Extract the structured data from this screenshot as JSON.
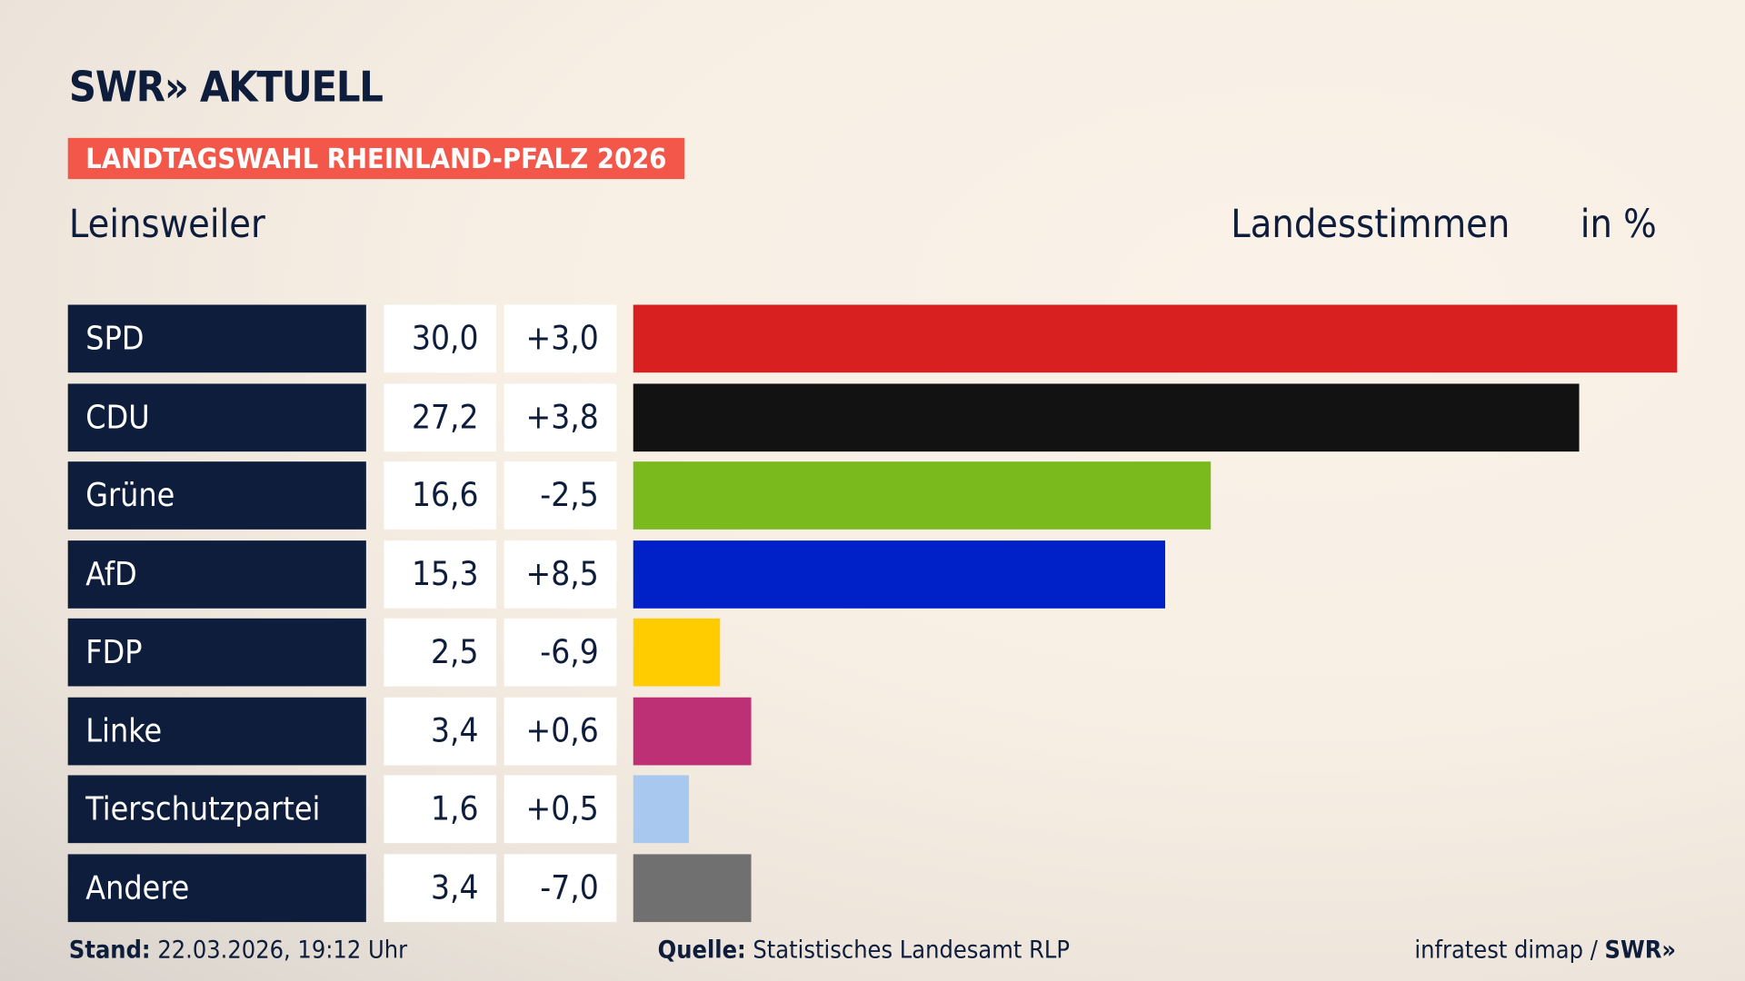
{
  "header": {
    "logo": "SWR» AKTUELL",
    "badge": "LANDTAGSWAHL RHEINLAND-PFALZ 2026",
    "place": "Leinsweiler",
    "metric": "Landesstimmen",
    "unit": "in %"
  },
  "chart_data": {
    "type": "bar",
    "orientation": "horizontal",
    "xlim": [
      0,
      30
    ],
    "categories": [
      "SPD",
      "CDU",
      "Grüne",
      "AfD",
      "FDP",
      "Linke",
      "Tierschutzpartei",
      "Andere"
    ],
    "values": [
      30.0,
      27.2,
      16.6,
      15.3,
      2.5,
      3.4,
      1.6,
      3.4
    ],
    "value_labels": [
      "30,0",
      "27,2",
      "16,6",
      "15,3",
      "2,5",
      "3,4",
      "1,6",
      "3,4"
    ],
    "change_labels": [
      "+3,0",
      "+3,8",
      "-2,5",
      "+8,5",
      "-6,9",
      "+0,6",
      "+0,5",
      "-7,0"
    ],
    "colors": [
      "#d82020",
      "#121212",
      "#7aba1c",
      "#0020c8",
      "#ffcc00",
      "#bd3075",
      "#a9c8ef",
      "#707070"
    ]
  },
  "footer": {
    "stand_label": "Stand:",
    "stand_value": " 22.03.2026, 19:12 Uhr",
    "source_label": "Quelle:",
    "source_value": " Statistisches Landesamt RLP",
    "credit": "infratest dimap / ",
    "credit_logo": "SWR»"
  }
}
